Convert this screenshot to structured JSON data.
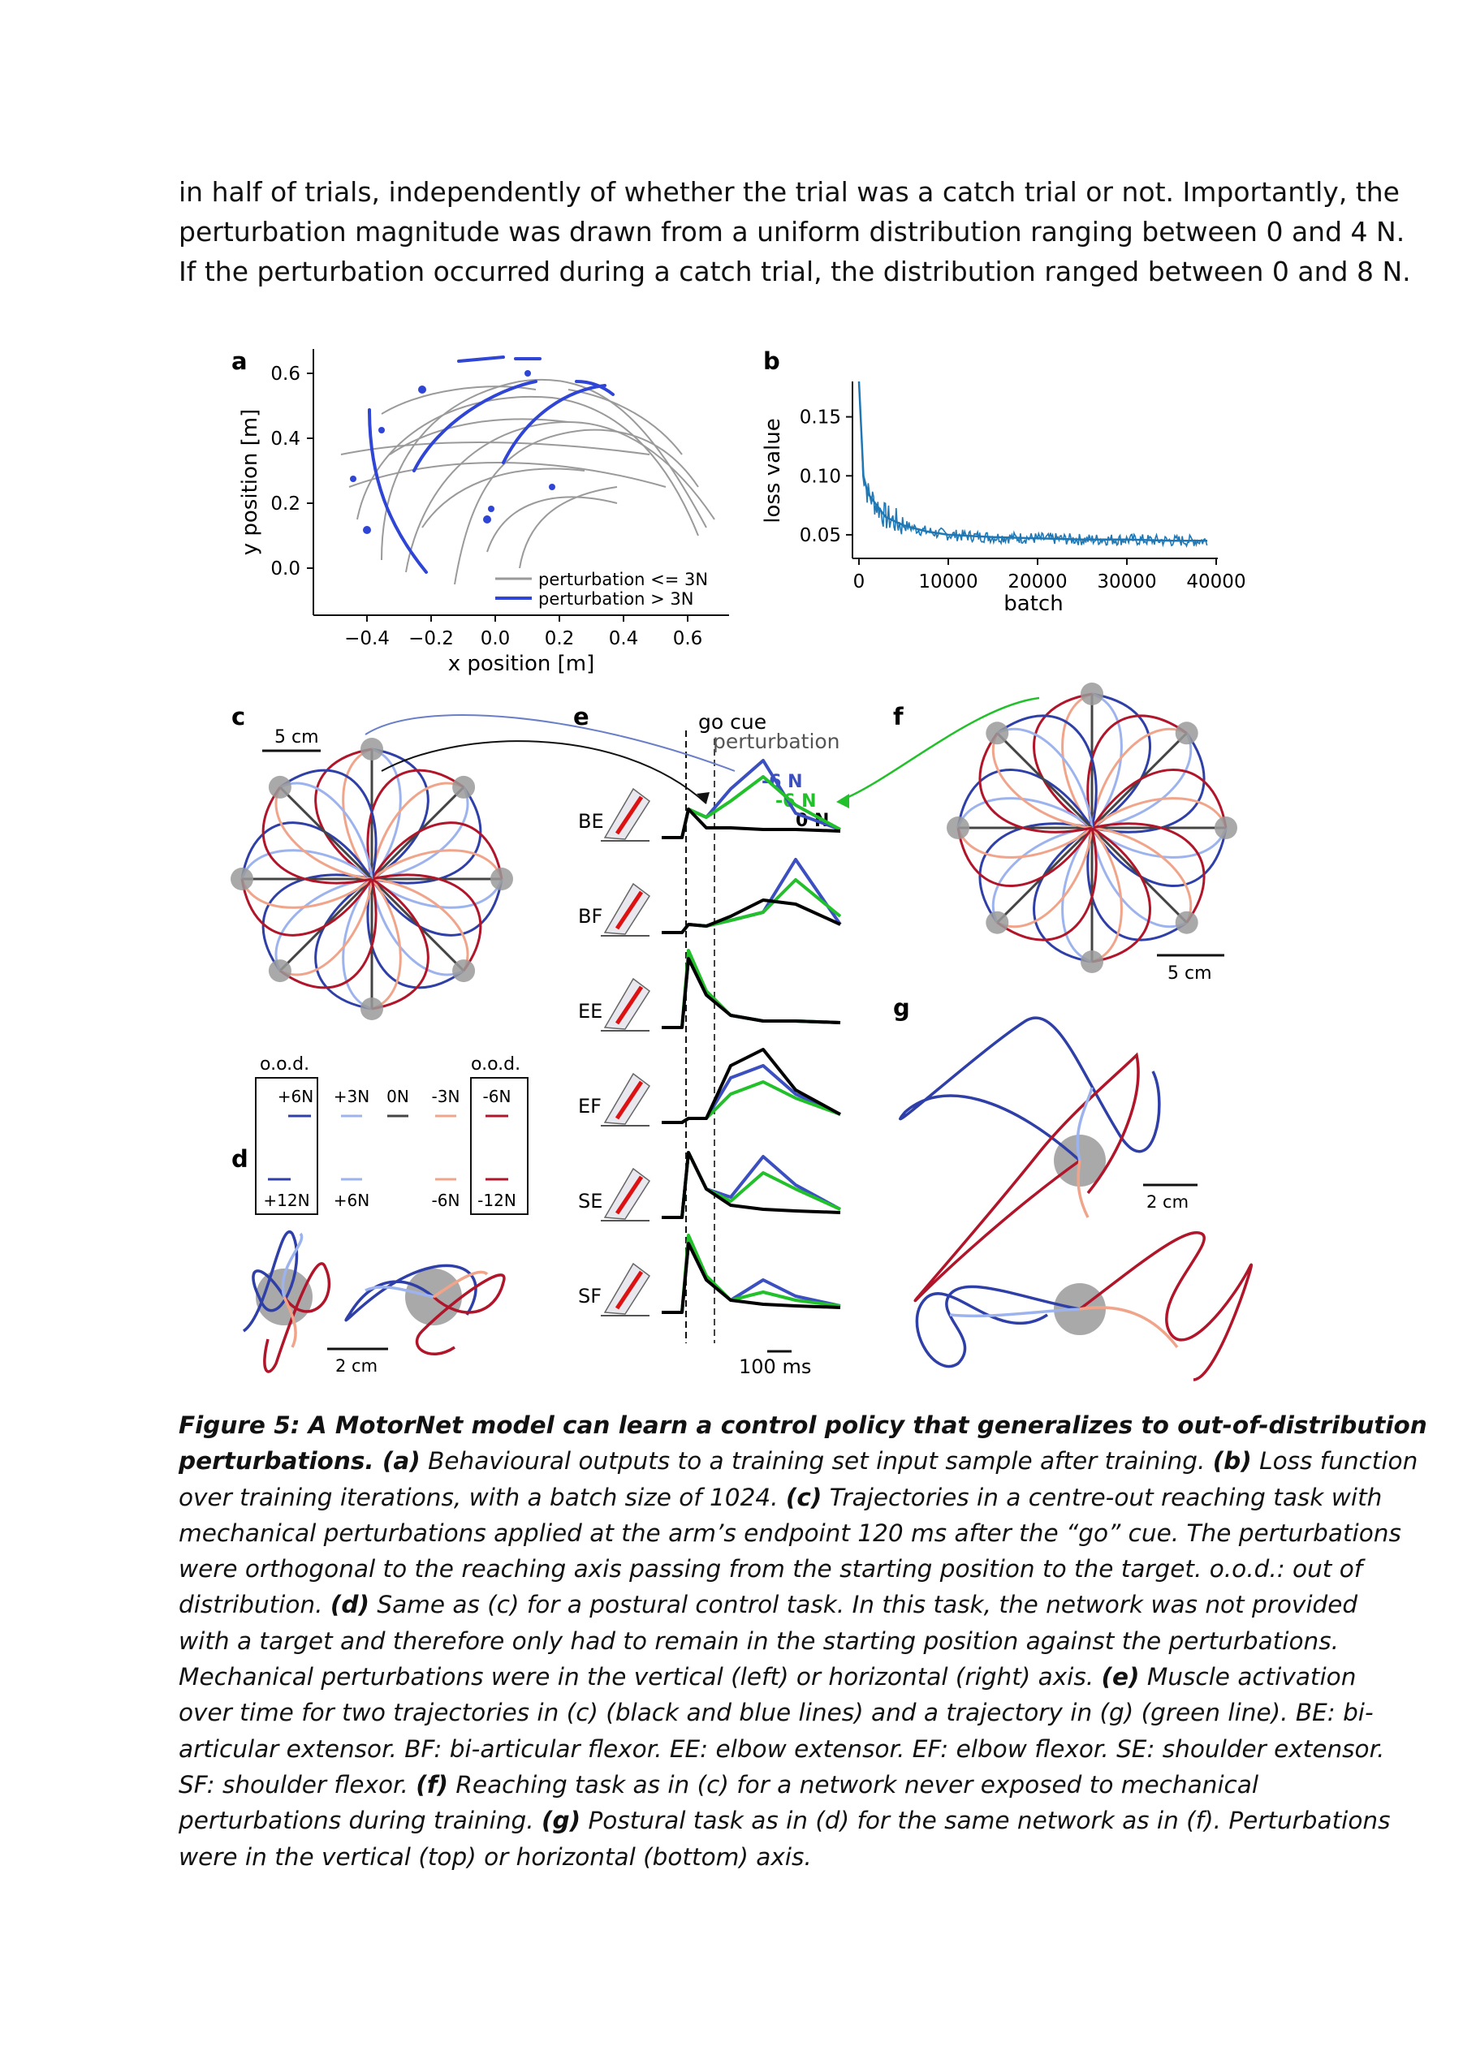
{
  "paragraph": [
    "in half of trials, independently of whether the trial was a catch trial or not. Importantly, the",
    "perturbation magnitude was drawn from a uniform distribution ranging between 0 and 4 N.",
    "If the perturbation occurred during a catch trial, the distribution ranged between 0 and 8 N."
  ],
  "panel_letters": {
    "a": "a",
    "b": "b",
    "c": "c",
    "d": "d",
    "e": "e",
    "f": "f",
    "g": "g"
  },
  "panel_a": {
    "xlabel": "x position [m]",
    "ylabel": "y position [m]",
    "xticks": [
      "−0.4",
      "−0.2",
      "0.0",
      "0.2",
      "0.4",
      "0.6"
    ],
    "yticks": [
      "0.6",
      "0.4",
      "0.2",
      "0.0"
    ],
    "legend": [
      "perturbation <= 3N",
      "perturbation > 3N"
    ],
    "colors": {
      "low": "#999999",
      "high": "#2f45d6"
    }
  },
  "chart_data": {
    "type": "line",
    "title": "",
    "xlabel": "batch",
    "ylabel": "loss value",
    "xticks": [
      "0",
      "10000",
      "20000",
      "30000",
      "40000"
    ],
    "yticks": [
      "0.15",
      "0.10",
      "0.05"
    ],
    "xlim": [
      0,
      40000
    ],
    "ylim": [
      0.03,
      0.18
    ],
    "series": [
      {
        "x": [
          0,
          500,
          1000,
          2000,
          3000,
          5000,
          7500,
          10000,
          15000,
          20000,
          25000,
          30000,
          35000,
          39000
        ],
        "values": [
          0.18,
          0.1,
          0.085,
          0.075,
          0.065,
          0.058,
          0.053,
          0.05,
          0.048,
          0.047,
          0.046,
          0.046,
          0.045,
          0.045
        ]
      }
    ],
    "color": "#1f77b4"
  },
  "panel_c": {
    "scale_label": "5 cm"
  },
  "panel_d": {
    "scale_label": "2 cm",
    "ood_left": "o.o.d.",
    "ood_right": "o.o.d.",
    "legend_top": [
      "+6N",
      "+3N",
      "0N",
      "-3N",
      "-6N"
    ],
    "legend_bottom": [
      "+12N",
      "+6N",
      "",
      "-6N",
      "-12N"
    ],
    "legend_colors": [
      "#2f3fa8",
      "#9db3ee",
      "#444444",
      "#f0a48a",
      "#b0152a"
    ]
  },
  "panel_e": {
    "go_cue": "go cue",
    "perturbation": "perturbation",
    "labels_force": [
      "-6 N",
      "-6 N",
      "0 N"
    ],
    "muscles": [
      "BE",
      "BF",
      "EE",
      "EF",
      "SE",
      "SF"
    ],
    "scale_label": "100 ms",
    "colors": {
      "blue": "#3b4fc0",
      "green": "#22c02a",
      "black": "#000000"
    }
  },
  "panel_f": {
    "scale_label": "5 cm"
  },
  "panel_g": {
    "scale_label": "2 cm"
  },
  "caption": {
    "lines": [
      [
        {
          "b": "Figure 5: A MotorNet model can learn a control policy that generalizes to out-of-distribution"
        }
      ],
      [
        {
          "b": "perturbations. (a)"
        },
        {
          "t": " Behavioural outputs to a training set input sample after training. "
        },
        {
          "b": "(b)"
        },
        {
          "t": " Loss function"
        }
      ],
      [
        {
          "t": "over training iterations, with a batch size of 1024. "
        },
        {
          "b": "(c)"
        },
        {
          "t": " Trajectories in a centre-out reaching task with"
        }
      ],
      [
        {
          "t": "mechanical perturbations applied at the arm’s endpoint 120 ms after the “go” cue. The perturbations"
        }
      ],
      [
        {
          "t": "were orthogonal to the reaching axis passing from the starting position to the target. o.o.d.: out of"
        }
      ],
      [
        {
          "t": "distribution. "
        },
        {
          "b": "(d)"
        },
        {
          "t": " Same as (c) for a postural control task. In this task, the network was not provided"
        }
      ],
      [
        {
          "t": "with a target and therefore only had to remain in the starting position against the perturbations."
        }
      ],
      [
        {
          "t": "Mechanical perturbations were in the vertical (left) or horizontal (right) axis. "
        },
        {
          "b": "(e)"
        },
        {
          "t": " Muscle activation"
        }
      ],
      [
        {
          "t": "over time for two trajectories in (c) (black and blue lines) and a trajectory in (g) (green line). BE: bi-"
        }
      ],
      [
        {
          "t": "articular extensor. BF: bi-articular flexor. EE: elbow extensor. EF: elbow flexor. SE: shoulder extensor."
        }
      ],
      [
        {
          "t": "SF: shoulder flexor. "
        },
        {
          "b": "(f)"
        },
        {
          "t": " Reaching task as in (c) for a network never exposed to mechanical"
        }
      ],
      [
        {
          "t": "perturbations during training. "
        },
        {
          "b": "(g)"
        },
        {
          "t": " Postural task as in (d) for the same network as in (f). Perturbations"
        }
      ],
      [
        {
          "t": "were in the vertical (top) or horizontal (bottom) axis."
        }
      ]
    ]
  }
}
